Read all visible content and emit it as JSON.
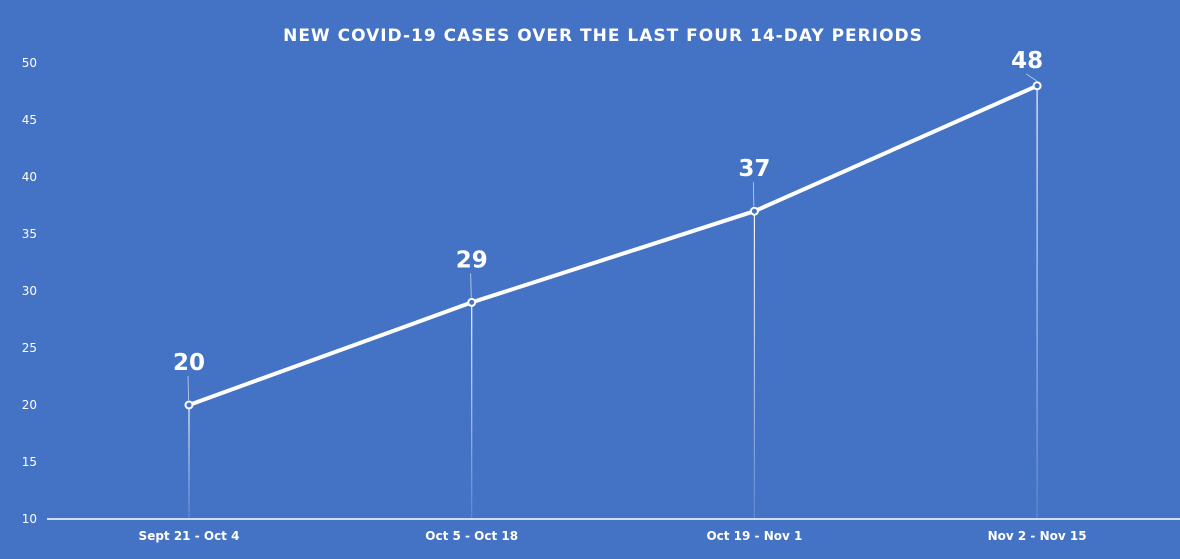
{
  "chart_data": {
    "type": "line",
    "title": "NEW COVID-19 CASES OVER THE LAST FOUR 14-DAY PERIODS",
    "xlabel": "",
    "ylabel": "",
    "categories": [
      "Sept 21 - Oct 4",
      "Oct 5 - Oct 18",
      "Oct 19 - Nov 1",
      "Nov 2 - Nov 15"
    ],
    "series": [
      {
        "values": [
          20,
          29,
          37,
          48
        ]
      }
    ],
    "ylim": [
      10,
      50
    ],
    "yticks": [
      10,
      15,
      20,
      25,
      30,
      35,
      40,
      45,
      50
    ],
    "grid": false,
    "legend": "none",
    "colors": {
      "background": "#4472C4",
      "line": "#FFFFFF",
      "text": "#FFFFFF"
    }
  }
}
